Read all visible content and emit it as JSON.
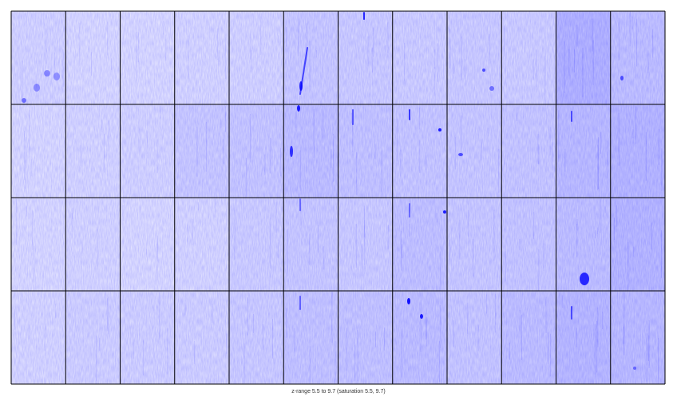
{
  "chart_data": {
    "type": "heatmap",
    "subtype": "tiled-image-grid",
    "rows": 4,
    "cols": 12,
    "zrange": [
      5.5,
      9.7
    ],
    "saturation": [
      5.5,
      9.7
    ],
    "colormap": {
      "low": "#ffffff",
      "high": "#0000ff"
    },
    "caption": "z-range 5.5 to 9.7 (saturation 5.5, 9.7)",
    "tile_mean_intensity": [
      [
        0.1,
        0.08,
        0.08,
        0.09,
        0.1,
        0.14,
        0.13,
        0.12,
        0.13,
        0.12,
        0.24,
        0.18
      ],
      [
        0.08,
        0.09,
        0.1,
        0.14,
        0.15,
        0.18,
        0.16,
        0.15,
        0.14,
        0.15,
        0.2,
        0.22
      ],
      [
        0.08,
        0.09,
        0.08,
        0.09,
        0.12,
        0.14,
        0.13,
        0.17,
        0.14,
        0.15,
        0.18,
        0.22
      ],
      [
        0.09,
        0.11,
        0.11,
        0.11,
        0.13,
        0.16,
        0.16,
        0.18,
        0.15,
        0.18,
        0.21,
        0.2
      ]
    ]
  },
  "colors": {
    "grid_line": "#000000",
    "spot": "#0000ff",
    "caption_text": "#333333"
  }
}
